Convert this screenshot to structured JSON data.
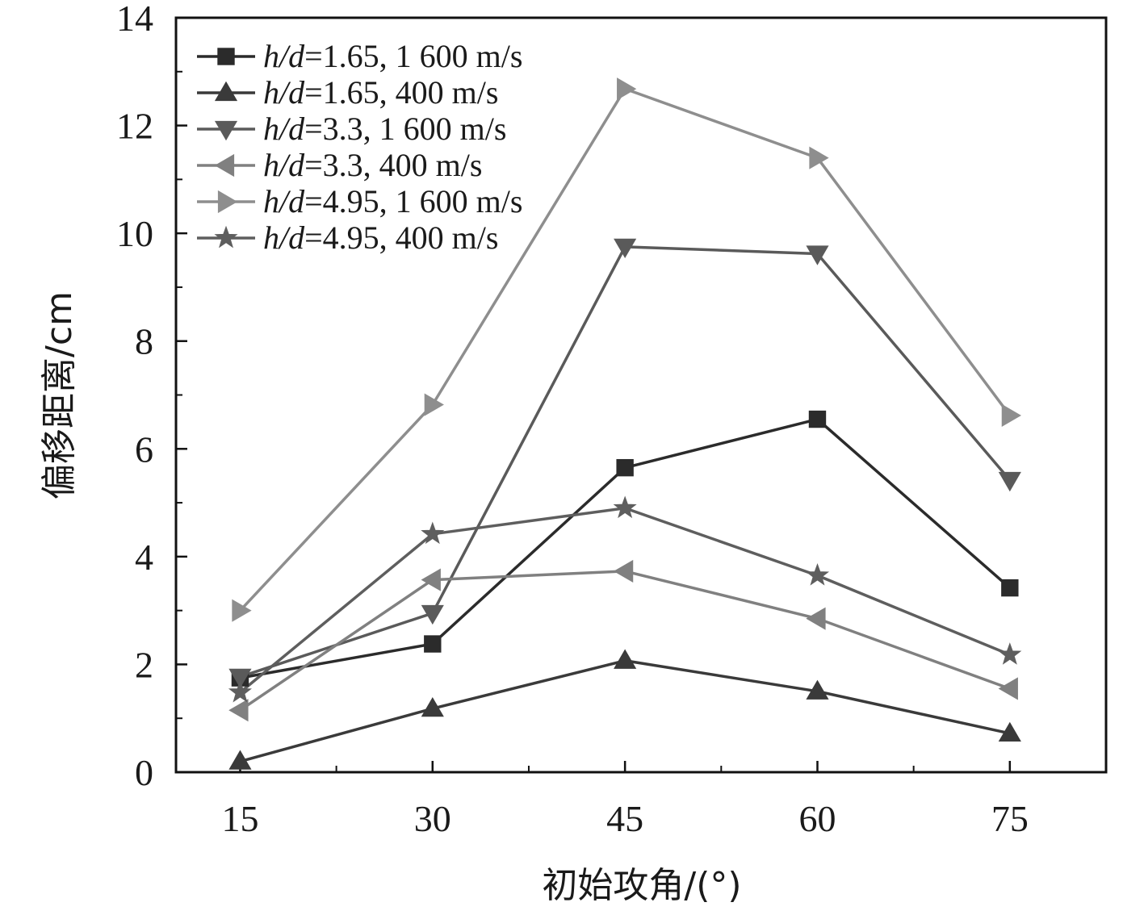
{
  "chart_data": {
    "type": "line",
    "xlabel": "初始攻角/(°)",
    "ylabel": "偏移距离/cm",
    "x": [
      15,
      30,
      45,
      60,
      75
    ],
    "xticks": [
      "15",
      "30",
      "45",
      "60",
      "75"
    ],
    "yticks": [
      "0",
      "2",
      "4",
      "6",
      "8",
      "10",
      "12",
      "14"
    ],
    "xlim": [
      10,
      82.5
    ],
    "ylim": [
      0,
      14
    ],
    "grid": false,
    "legend_position": "top-left",
    "series": [
      {
        "name": "h/d=1.65, 1 600 m/s",
        "label_ratio": "h/d",
        "label_rest": "=1.65, 1 600 m/s",
        "marker": "square",
        "color": "#2b2b2b",
        "values": [
          1.75,
          2.38,
          5.65,
          6.55,
          3.42
        ]
      },
      {
        "name": "h/d=1.65, 400 m/s",
        "label_ratio": "h/d",
        "label_rest": "=1.65, 400 m/s",
        "marker": "triangle-up",
        "color": "#3a3a3a",
        "values": [
          0.2,
          1.18,
          2.07,
          1.5,
          0.72
        ]
      },
      {
        "name": "h/d=3.3, 1 600 m/s",
        "label_ratio": "h/d",
        "label_rest": "=3.3, 1 600 m/s",
        "marker": "triangle-down",
        "color": "#5a5a5a",
        "values": [
          1.77,
          2.95,
          9.75,
          9.62,
          5.42
        ]
      },
      {
        "name": "h/d=3.3, 400 m/s",
        "label_ratio": "h/d",
        "label_rest": "=3.3, 400 m/s",
        "marker": "triangle-left",
        "color": "#808080",
        "values": [
          1.15,
          3.57,
          3.73,
          2.85,
          1.55
        ]
      },
      {
        "name": "h/d=4.95, 1 600 m/s",
        "label_ratio": "h/d",
        "label_rest": "=4.95, 1 600 m/s",
        "marker": "triangle-right",
        "color": "#8e8e8e",
        "values": [
          3.0,
          6.82,
          12.68,
          11.4,
          6.62
        ]
      },
      {
        "name": "h/d=4.95, 400 m/s",
        "label_ratio": "h/d",
        "label_rest": "=4.95, 400 m/s",
        "marker": "star",
        "color": "#5e5e5e",
        "values": [
          1.48,
          4.42,
          4.9,
          3.65,
          2.18
        ]
      }
    ]
  }
}
